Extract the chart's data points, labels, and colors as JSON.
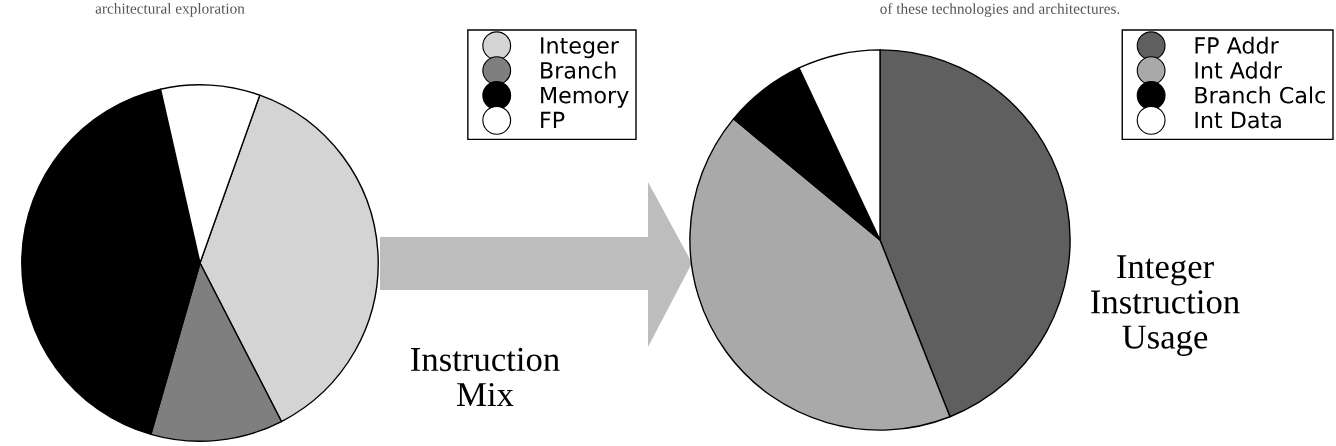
{
  "chart_data": [
    {
      "type": "pie",
      "title": "Instruction Mix",
      "categories": [
        "Integer",
        "Branch",
        "Memory",
        "FP"
      ],
      "values": [
        37,
        12,
        42,
        9
      ],
      "colors": [
        "#d4d4d4",
        "#7f7f7f",
        "#000000",
        "#ffffff"
      ],
      "legend": "top right",
      "annotations": [
        "architectural exploration"
      ]
    },
    {
      "type": "pie",
      "title": "Integer Instruction Usage",
      "categories": [
        "FP Addr",
        "Int Addr",
        "Branch Calc",
        "Int Data"
      ],
      "values": [
        44,
        42,
        7,
        7
      ],
      "colors": [
        "#5f5f5f",
        "#a9a9a9",
        "#000000",
        "#ffffff"
      ],
      "legend": "top right",
      "annotations": [
        "of these technologies and architectures."
      ]
    }
  ]
}
